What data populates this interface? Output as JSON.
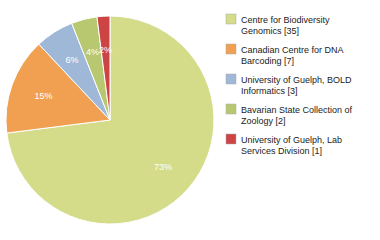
{
  "chart_data": {
    "type": "pie",
    "labels": [
      "Centre for Biodiversity\nGenomics [35]",
      "Canadian Centre for DNA\nBarcoding [7]",
      "University of Guelph, BOLD\nInformatics [3]",
      "Bavarian State Collection of\nZoology [2]",
      "University of Guelph, Lab\nServices Division [1]"
    ],
    "values": [
      73,
      15,
      6,
      4,
      2
    ],
    "value_labels": [
      "73%",
      "15%",
      "6%",
      "4%",
      "2%"
    ],
    "colors": [
      "#d4dc8a",
      "#f0a050",
      "#a0b8d8",
      "#b8c870",
      "#cc4444"
    ],
    "data_labels": true,
    "legend": "right"
  }
}
